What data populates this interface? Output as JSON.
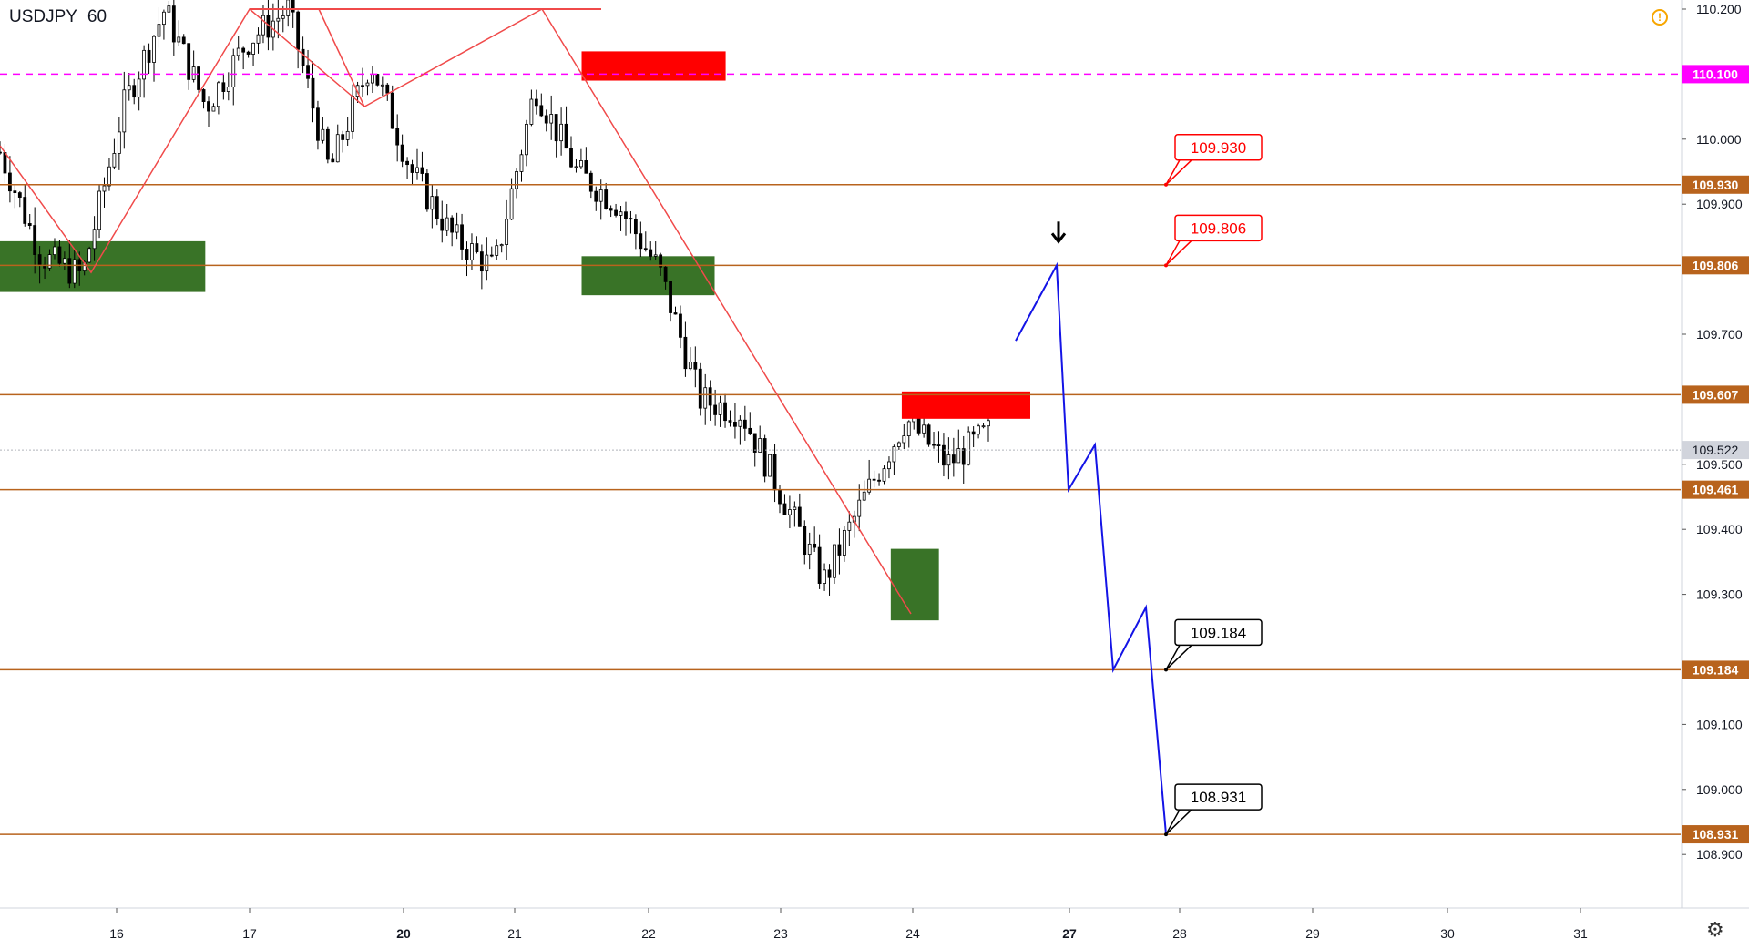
{
  "header": {
    "symbol": "USDJPY",
    "interval": "60"
  },
  "icons": {
    "alert": "exclamation-circle-icon",
    "settings": "gear-icon"
  },
  "colors": {
    "level": "#b8631d",
    "level_label_bg": "#b8631d",
    "magenta": "#ff00ff",
    "supply": "#ff0000",
    "demand": "#2e6b1b",
    "projection": "#1414e6",
    "trendline": "#f04a4a",
    "current_price_bg": "#d1d4dc"
  },
  "chart_data": {
    "type": "candlestick",
    "symbol": "USDJPY",
    "timeframe": "60",
    "ylim": [
      108.8,
      110.2
    ],
    "y_ticks": [
      "110.200",
      "110.000",
      "109.900",
      "109.700",
      "109.500",
      "109.400",
      "109.300",
      "109.100",
      "109.000",
      "108.900"
    ],
    "x_ticks": [
      {
        "label": "16",
        "bold": false
      },
      {
        "label": "17",
        "bold": false
      },
      {
        "label": "20",
        "bold": true
      },
      {
        "label": "21",
        "bold": false
      },
      {
        "label": "22",
        "bold": false
      },
      {
        "label": "23",
        "bold": false
      },
      {
        "label": "24",
        "bold": false
      },
      {
        "label": "27",
        "bold": true
      },
      {
        "label": "28",
        "bold": false
      },
      {
        "label": "29",
        "bold": false
      },
      {
        "label": "30",
        "bold": false
      },
      {
        "label": "31",
        "bold": false
      }
    ],
    "horizontal_levels": [
      {
        "value": 110.1,
        "label": "110.100",
        "style": "dashed",
        "color": "#ff00ff"
      },
      {
        "value": 109.93,
        "label": "109.930",
        "style": "solid",
        "color": "#b8631d"
      },
      {
        "value": 109.806,
        "label": "109.806",
        "style": "solid",
        "color": "#b8631d"
      },
      {
        "value": 109.607,
        "label": "109.607",
        "style": "solid",
        "color": "#b8631d"
      },
      {
        "value": 109.461,
        "label": "109.461",
        "style": "solid",
        "color": "#b8631d"
      },
      {
        "value": 109.184,
        "label": "109.184",
        "style": "solid",
        "color": "#b8631d"
      },
      {
        "value": 108.931,
        "label": "108.931",
        "style": "solid",
        "color": "#b8631d"
      }
    ],
    "current_price": {
      "value": 109.522,
      "label": "109.522"
    },
    "callouts": [
      {
        "text": "109.930",
        "value": 109.93,
        "color": "red"
      },
      {
        "text": "109.806",
        "value": 109.806,
        "color": "red"
      },
      {
        "text": "109.184",
        "value": 109.184,
        "color": "black"
      },
      {
        "text": "108.931",
        "value": 108.931,
        "color": "black"
      }
    ],
    "supply_zones": [
      {
        "from": "Jun 21 12:00",
        "to": "Jun 22 14:00",
        "top": 110.135,
        "bottom": 110.09
      },
      {
        "from": "Jun 23 22:00",
        "to": "Jun 24 18:00",
        "top": 109.612,
        "bottom": 109.57
      }
    ],
    "demand_zones": [
      {
        "from": "Jun 15 00:00",
        "to": "Jun 16 16:00",
        "top": 109.843,
        "bottom": 109.765
      },
      {
        "from": "Jun 21 12:00",
        "to": "Jun 22 12:00",
        "top": 109.82,
        "bottom": 109.76
      },
      {
        "from": "Jun 23 20:00",
        "to": "Jun 24 04:00",
        "top": 109.37,
        "bottom": 109.26
      }
    ],
    "projection_path": [
      109.69,
      109.806,
      109.461,
      109.53,
      109.184,
      109.28,
      108.931
    ],
    "arrow": {
      "direction": "down",
      "at": 109.806
    },
    "series": [
      {
        "type": "candles",
        "approx_path": [
          109.98,
          109.82,
          109.79,
          110.05,
          110.2,
          110.05,
          110.15,
          110.2,
          109.95,
          110.12,
          109.95,
          109.85,
          109.8,
          110.08,
          109.95,
          109.9,
          109.8,
          109.6,
          109.58,
          109.45,
          109.32,
          109.45,
          109.57,
          109.5,
          109.55
        ]
      }
    ]
  }
}
